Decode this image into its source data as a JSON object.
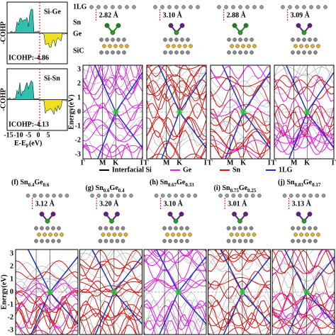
{
  "cohp": {
    "ylabel": "-COHP",
    "panels": [
      {
        "bond": "Si-Ge",
        "icohp": "ICOHP:-4.86"
      },
      {
        "bond": "Si-Sn",
        "icohp": "ICOHP:-4.13"
      }
    ],
    "xticks": [
      "-15",
      "-10",
      "-5",
      "0",
      "5"
    ],
    "xlabel": {
      "main": "E-E",
      "sub": "F",
      "unit": "(eV)"
    }
  },
  "layer_labels": [
    "1LG",
    "Sn",
    "Ge",
    "SiC"
  ],
  "top_panels": [
    {
      "distance": "2.82 Å"
    },
    {
      "distance": "3.10 Å"
    },
    {
      "distance": "2.88 Å"
    },
    {
      "distance": "3.09 Å"
    }
  ],
  "bottom_panels": [
    {
      "prefix": "(f) Sn",
      "sub1": "0.4",
      "mid": "Ge",
      "sub2": "0.6",
      "distance": "3.12 Å"
    },
    {
      "prefix": "(g) Sn",
      "sub1": "0.6",
      "mid": "Ge",
      "sub2": "0.4",
      "distance": "3.20 Å"
    },
    {
      "prefix": "(h) Sn",
      "sub1": "0.67",
      "mid": "Ge",
      "sub2": "0.33",
      "distance": "3.10 Å"
    },
    {
      "prefix": "(i) Sn",
      "sub1": "0.75",
      "mid": "Ge",
      "sub2": "0.25",
      "distance": "3.01 Å"
    },
    {
      "prefix": "(j) Sn",
      "sub1": "0.83",
      "mid": "Ge",
      "sub2": "0.17",
      "distance": "3.13 Å"
    }
  ],
  "legend": [
    {
      "name": "Interfacial Si",
      "color": "#000000"
    },
    {
      "name": "Ge",
      "color": "#e020e0"
    },
    {
      "name": "Sn",
      "color": "#d01818"
    },
    {
      "name": "1LG",
      "color": "#1830c0"
    }
  ],
  "bands": {
    "ylabel": "Energy(eV)",
    "yticks": [
      "3",
      "2",
      "1",
      "0",
      "-1",
      "-2",
      "-3"
    ],
    "kpoints": [
      "Γ",
      "M",
      "K",
      "Γ"
    ]
  }
}
